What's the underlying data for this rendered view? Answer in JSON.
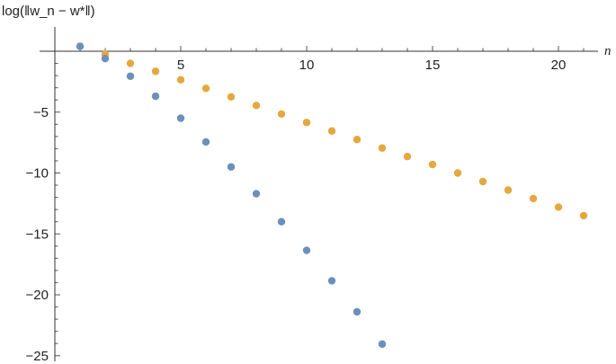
{
  "chart_data": {
    "type": "scatter",
    "title": "",
    "xlabel": "n",
    "ylabel": "log(‖w_n − w*‖)",
    "xlim": [
      0,
      21.4
    ],
    "ylim": [
      -25,
      1
    ],
    "x_ticks": [
      5,
      10,
      15,
      20
    ],
    "y_ticks": [
      -5,
      -10,
      -15,
      -20,
      -25
    ],
    "grid": false,
    "series": [
      {
        "color": "#E6A73F",
        "points": [
          [
            1,
            0.4
          ],
          [
            2,
            -0.25
          ],
          [
            3,
            -1.0
          ],
          [
            4,
            -1.65
          ],
          [
            5,
            -2.35
          ],
          [
            6,
            -3.05
          ],
          [
            7,
            -3.75
          ],
          [
            8,
            -4.45
          ],
          [
            9,
            -5.15
          ],
          [
            10,
            -5.85
          ],
          [
            11,
            -6.55
          ],
          [
            12,
            -7.25
          ],
          [
            13,
            -7.95
          ],
          [
            14,
            -8.65
          ],
          [
            15,
            -9.3
          ],
          [
            16,
            -10.0
          ],
          [
            17,
            -10.7
          ],
          [
            18,
            -11.4
          ],
          [
            19,
            -12.1
          ],
          [
            20,
            -12.8
          ],
          [
            21,
            -13.5
          ]
        ]
      },
      {
        "color": "#6A90BB",
        "points": [
          [
            1,
            0.4
          ],
          [
            2,
            -0.6
          ],
          [
            3,
            -2.05
          ],
          [
            4,
            -3.7
          ],
          [
            5,
            -5.5
          ],
          [
            6,
            -7.45
          ],
          [
            7,
            -9.5
          ],
          [
            8,
            -11.7
          ],
          [
            9,
            -14.0
          ],
          [
            10,
            -16.35
          ],
          [
            11,
            -18.85
          ],
          [
            12,
            -21.4
          ],
          [
            13,
            -24.05
          ]
        ]
      }
    ]
  }
}
